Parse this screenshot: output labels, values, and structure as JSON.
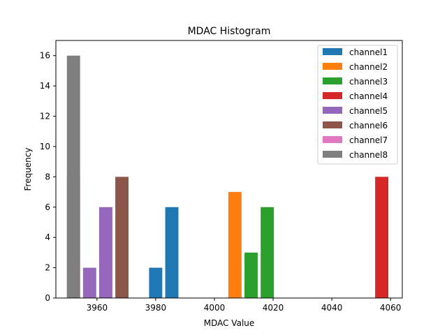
{
  "chart_data": {
    "type": "bar",
    "title": "MDAC Histogram",
    "xlabel": "MDAC Value",
    "ylabel": "Frequency",
    "xlim": [
      3946,
      4064
    ],
    "ylim": [
      0,
      17
    ],
    "x_ticks": [
      3960,
      3980,
      4000,
      4020,
      4040,
      4060
    ],
    "y_ticks": [
      0,
      2,
      4,
      6,
      8,
      10,
      12,
      14,
      16
    ],
    "bar_width": 4.5,
    "legend_position": "top-right",
    "series": [
      {
        "name": "channel1",
        "color": "#1f77b4",
        "bars": [
          {
            "x": 3980,
            "value": 2
          },
          {
            "x": 3985.5,
            "value": 6
          }
        ]
      },
      {
        "name": "channel2",
        "color": "#ff7f0e",
        "bars": [
          {
            "x": 4007,
            "value": 7
          },
          {
            "x": 4012.5,
            "value": 1
          }
        ]
      },
      {
        "name": "channel3",
        "color": "#2ca02c",
        "bars": [
          {
            "x": 4012.5,
            "value": 3
          },
          {
            "x": 4018,
            "value": 6
          }
        ]
      },
      {
        "name": "channel4",
        "color": "#d62728",
        "bars": [
          {
            "x": 4057,
            "value": 8
          }
        ]
      },
      {
        "name": "channel5",
        "color": "#9467bd",
        "bars": [
          {
            "x": 3957.5,
            "value": 2
          },
          {
            "x": 3963,
            "value": 6
          }
        ]
      },
      {
        "name": "channel6",
        "color": "#8c564b",
        "bars": [
          {
            "x": 3968.5,
            "value": 8
          }
        ]
      },
      {
        "name": "channel7",
        "color": "#e377c2",
        "bars": [
          {
            "x": 3952,
            "value": 8
          }
        ]
      },
      {
        "name": "channel8",
        "color": "#7f7f7f",
        "bars": [
          {
            "x": 3952,
            "value": 16
          }
        ]
      }
    ]
  }
}
